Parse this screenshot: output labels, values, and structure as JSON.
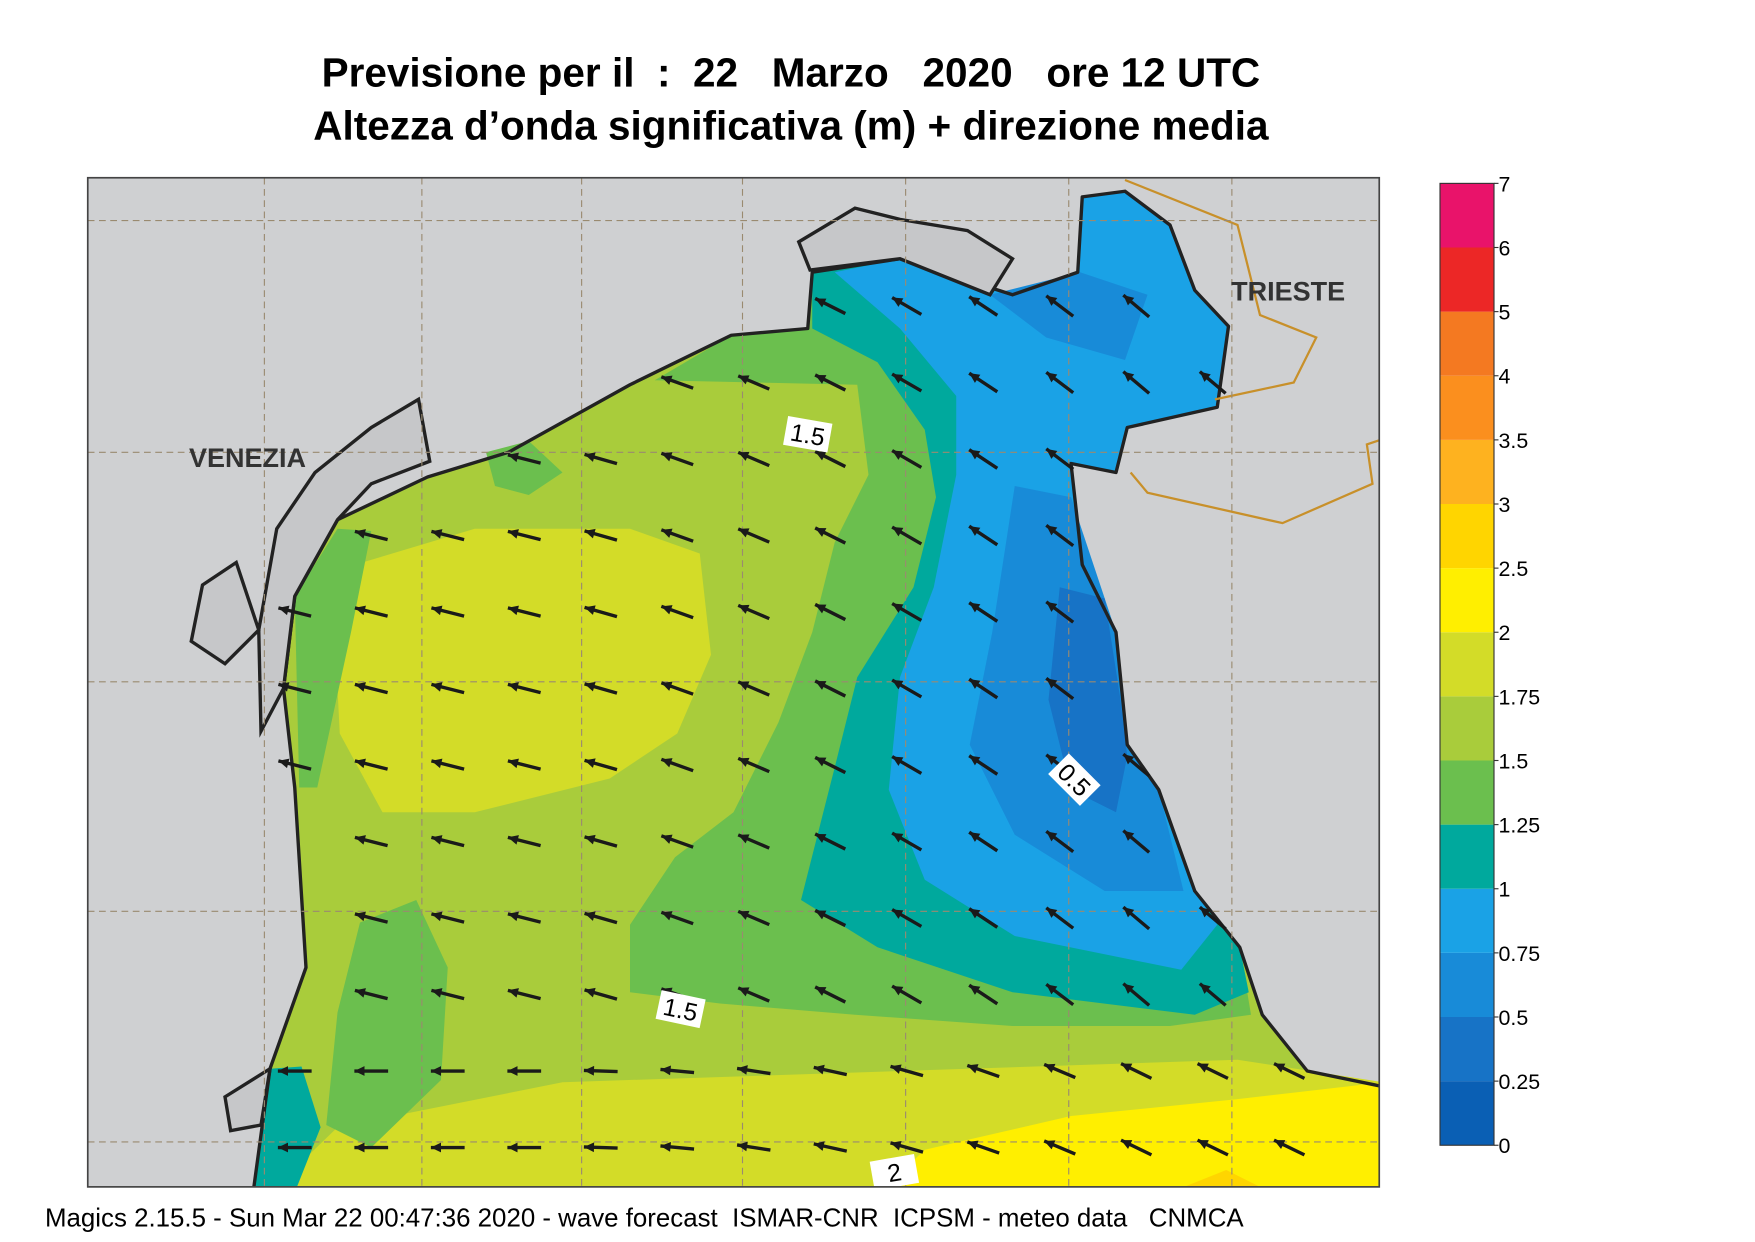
{
  "header": {
    "title": "Previsione per il  :  22   Marzo   2020   ore 12 UTC",
    "subtitle": "Altezza d’onda significativa (m) + direzione media"
  },
  "map": {
    "places": [
      "VENEZIA",
      "TRIESTE"
    ],
    "contour_labels": [
      "1.5",
      "1.5",
      "0.5",
      "2"
    ]
  },
  "legend": {
    "ticks": [
      0,
      0.25,
      0.5,
      0.75,
      1,
      1.25,
      1.5,
      1.75,
      2,
      2.5,
      3,
      3.5,
      4,
      5,
      6,
      7
    ],
    "colors": [
      "#0a5fb4",
      "#1773c6",
      "#188bd8",
      "#1aa2e6",
      "#00a99d",
      "#6bbf4e",
      "#a9cc3b",
      "#d3dc28",
      "#ffef00",
      "#ffd500",
      "#feb21f",
      "#fb8f1e",
      "#f47921",
      "#ec2726",
      "#e9136a"
    ]
  },
  "footer": "Magics 2.15.5 - Sun Mar 22 00:47:36 2020 - wave forecast  ISMAR-CNR  ICPSM - meteo data   CNMCA"
}
